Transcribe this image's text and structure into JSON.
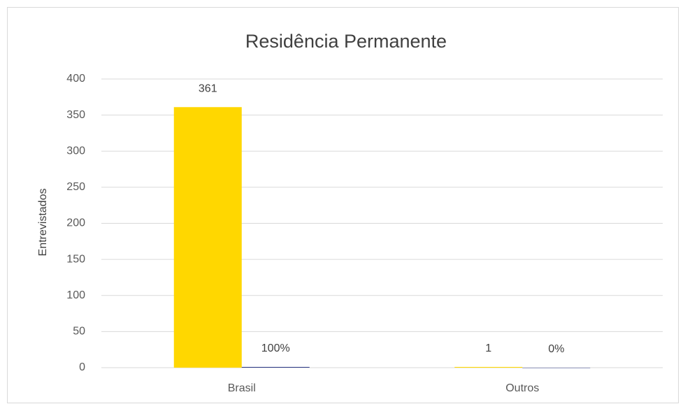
{
  "chart_data": {
    "type": "bar",
    "title": "Residência Permanente",
    "y_label": "Entrevistados",
    "categories": [
      "Brasil",
      "Outros"
    ],
    "series": [
      {
        "color": "#FFD700",
        "values": [
          361,
          1
        ]
      },
      {
        "color": "#2E3A87",
        "values": [
          1,
          0
        ],
        "value_labels": [
          "100%",
          "0%"
        ]
      }
    ],
    "ylim": [
      0,
      400
    ],
    "yticks": [
      0,
      50,
      100,
      150,
      200,
      250,
      300,
      350,
      400
    ],
    "grid": true
  }
}
